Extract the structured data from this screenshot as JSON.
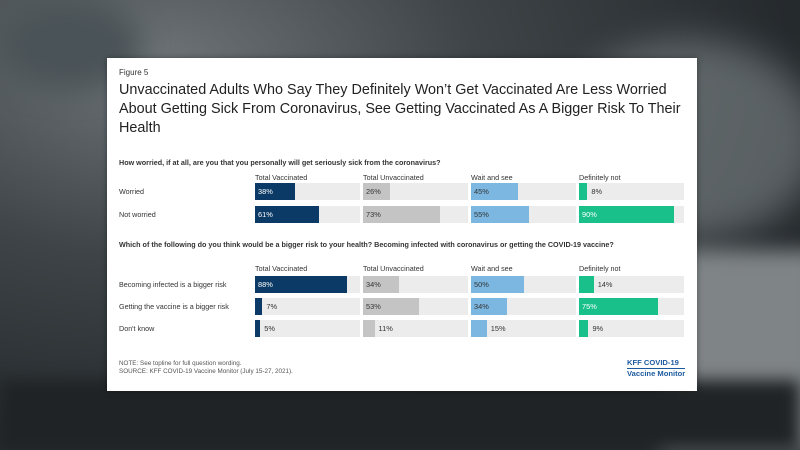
{
  "figure_label": "Figure 5",
  "title": "Unvaccinated Adults Who Say They Definitely Won’t Get Vaccinated Are Less Worried About Getting Sick From Coronavirus, See Getting Vaccinated As A Bigger Risk To Their Health",
  "chart_data": [
    {
      "type": "bar",
      "title": "How worried, if at all, are you that you personally will get seriously sick from the coronavirus?",
      "columns": [
        "Total Vaccinated",
        "Total Unvaccinated",
        "Wait and see",
        "Definitely not"
      ],
      "colors": [
        "#0b3a66",
        "#c4c4c4",
        "#7bb7e0",
        "#19c08a"
      ],
      "categories": [
        "Worried",
        "Not worried"
      ],
      "series": [
        {
          "name": "Total Vaccinated",
          "values": [
            38,
            61
          ]
        },
        {
          "name": "Total Unvaccinated",
          "values": [
            26,
            73
          ]
        },
        {
          "name": "Wait and see",
          "values": [
            45,
            55
          ]
        },
        {
          "name": "Definitely not",
          "values": [
            8,
            90
          ]
        }
      ],
      "xlim": [
        0,
        100
      ]
    },
    {
      "type": "bar",
      "title": "Which of the following do you think would be a bigger risk to your health? Becoming infected with coronavirus or getting the COVID-19 vaccine?",
      "columns": [
        "Total Vaccinated",
        "Total Unvaccinated",
        "Wait and see",
        "Definitely not"
      ],
      "colors": [
        "#0b3a66",
        "#c4c4c4",
        "#7bb7e0",
        "#19c08a"
      ],
      "categories": [
        "Becoming infected is a bigger risk",
        "Getting the vaccine is a bigger risk",
        "Don't know"
      ],
      "series": [
        {
          "name": "Total Vaccinated",
          "values": [
            88,
            7,
            5
          ]
        },
        {
          "name": "Total Unvaccinated",
          "values": [
            34,
            53,
            11
          ]
        },
        {
          "name": "Wait and see",
          "values": [
            50,
            34,
            15
          ]
        },
        {
          "name": "Definitely not",
          "values": [
            14,
            75,
            9
          ]
        }
      ],
      "xlim": [
        0,
        100
      ]
    }
  ],
  "note_lines": [
    "NOTE: See topline for full question wording.",
    "SOURCE: KFF COVID-19 Vaccine Monitor (July 15-27, 2021)."
  ],
  "logo_lines": [
    "KFF COVID-19",
    "Vaccine Monitor"
  ]
}
